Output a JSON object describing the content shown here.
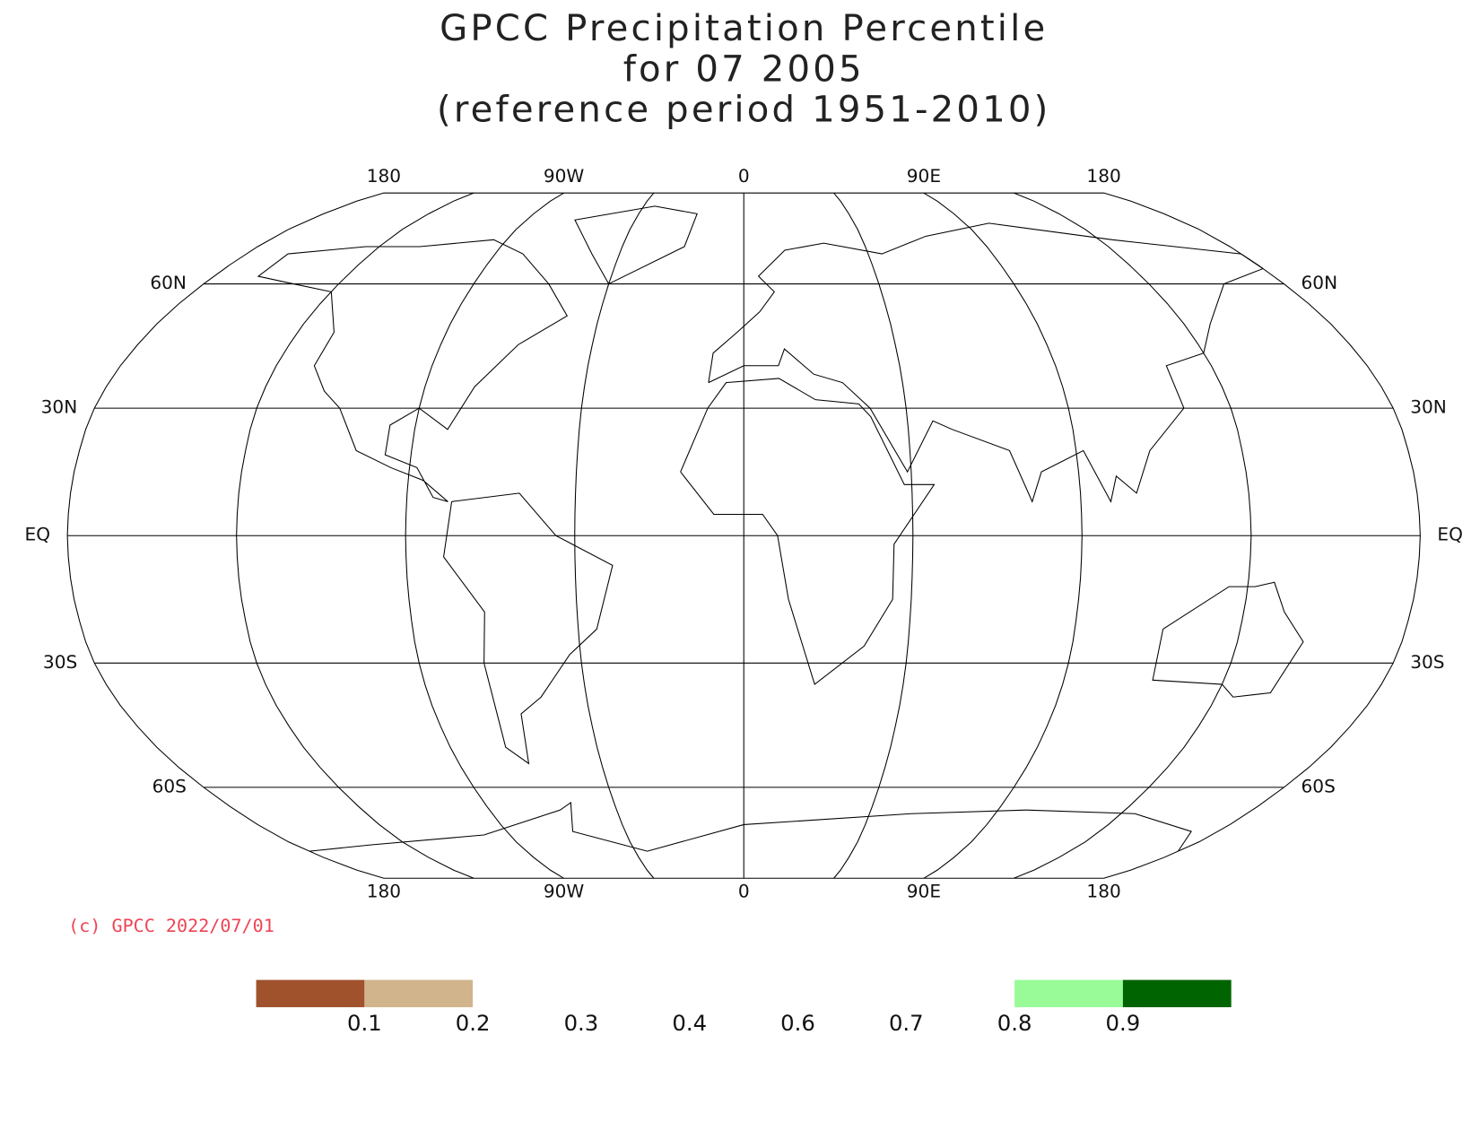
{
  "title": [
    "GPCC Precipitation Percentile",
    "for 07 2005",
    "(reference period 1951-2010)"
  ],
  "longitude_labels": [
    "180",
    "90W",
    "0",
    "90E",
    "180"
  ],
  "latitude_labels": [
    "60N",
    "30N",
    "EQ",
    "30S",
    "60S"
  ],
  "credit": "(c) GPCC 2022/07/01",
  "colorbar": {
    "colors": [
      "#a0522d",
      "#d2b48c",
      "#ffffff",
      "#ffffff",
      "#ffffff",
      "#ffffff",
      "#ffffff",
      "#98fb98",
      "#006400"
    ],
    "labels": [
      "0.1",
      "0.2",
      "0.3",
      "0.4",
      "0.6",
      "0.7",
      "0.8",
      "0.9"
    ]
  }
}
